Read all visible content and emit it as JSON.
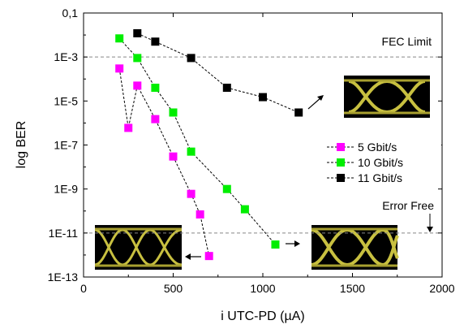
{
  "chart_data": {
    "type": "scatter",
    "title": "",
    "xlabel": "i UTC-PD (µA)",
    "ylabel": "log BER",
    "xlim": [
      0,
      2000
    ],
    "ylim": [
      1e-13,
      0.1
    ],
    "yscale": "log",
    "x_ticks": [
      0,
      500,
      1000,
      1500,
      2000
    ],
    "x_tick_labels": [
      "0",
      "500",
      "1000",
      "1500",
      "2000"
    ],
    "y_ticks": [
      1e-13,
      1e-11,
      1e-09,
      1e-07,
      1e-05,
      0.001,
      0.1
    ],
    "y_tick_labels": [
      "1E-13",
      "1E-11",
      "1E-9",
      "1E-7",
      "1E-5",
      "1E-3",
      "0,1"
    ],
    "grid": false,
    "legend_position": "center-right",
    "reference_lines": [
      {
        "label": "FEC Limit",
        "y": 0.001
      },
      {
        "label": "Error Free",
        "y": 1e-11
      }
    ],
    "series": [
      {
        "name": "5 Gbit/s",
        "color": "#ff00ff",
        "x": [
          200,
          250,
          300,
          400,
          500,
          600,
          650,
          700
        ],
        "y": [
          0.0003,
          6e-07,
          5e-05,
          1.5e-06,
          3e-08,
          6e-10,
          7e-11,
          9e-13
        ]
      },
      {
        "name": "10 Gbit/s",
        "color": "#00ee00",
        "x": [
          200,
          300,
          400,
          500,
          600,
          800,
          900,
          1070
        ],
        "y": [
          0.007,
          0.0009,
          4e-05,
          3e-06,
          5e-08,
          1e-09,
          1.2e-10,
          3e-12
        ]
      },
      {
        "name": "11 Gbit/s",
        "color": "#000000",
        "x": [
          300,
          400,
          600,
          800,
          1000,
          1200
        ],
        "y": [
          0.012,
          0.005,
          0.0009,
          4e-05,
          1.5e-05,
          3e-06
        ]
      }
    ]
  }
}
